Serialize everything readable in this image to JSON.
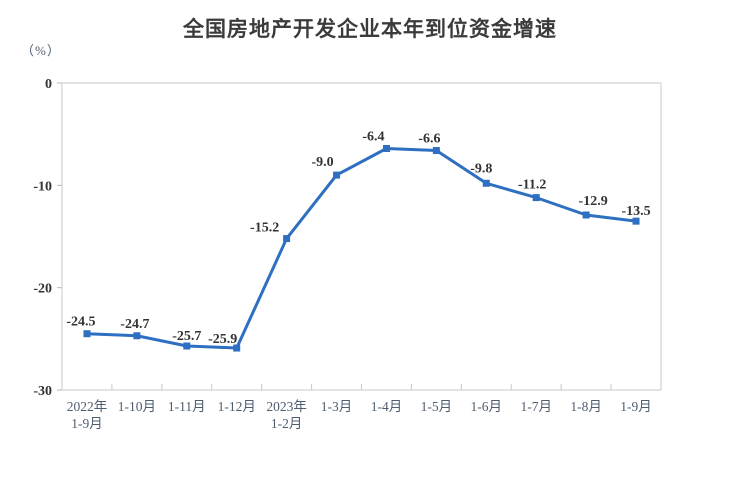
{
  "chart_data": {
    "type": "line",
    "title": "全国房地产开发企业本年到位资金增速",
    "unit": "（%）",
    "categories": [
      [
        "2022年",
        "1-9月"
      ],
      [
        "1-10月"
      ],
      [
        "1-11月"
      ],
      [
        "1-12月"
      ],
      [
        "2023年",
        "1-2月"
      ],
      [
        "1-3月"
      ],
      [
        "1-4月"
      ],
      [
        "1-5月"
      ],
      [
        "1-6月"
      ],
      [
        "1-7月"
      ],
      [
        "1-8月"
      ],
      [
        "1-9月"
      ]
    ],
    "values": [
      -24.5,
      -24.7,
      -25.7,
      -25.9,
      -15.2,
      -9.0,
      -6.4,
      -6.6,
      -9.8,
      -11.2,
      -12.9,
      -13.5
    ],
    "labels": [
      "-24.5",
      "-24.7",
      "-25.7",
      "-25.9",
      "-15.2",
      "-9.0",
      "-6.4",
      "-6.6",
      "-9.8",
      "-11.2",
      "-12.9",
      "-13.5"
    ],
    "y_ticks": [
      0,
      -10,
      -20,
      -30
    ],
    "y_tick_labels": [
      "0",
      "-10",
      "-20",
      "-30"
    ],
    "ylim": [
      -30,
      0
    ],
    "xlabel": "",
    "ylabel": "（%）",
    "grid": false,
    "legend": null,
    "marker": "square"
  },
  "colors": {
    "line": "#2e6fc1",
    "marker": "#2e6fc1",
    "plot_border": "#c8c8c8",
    "tick": "#b8b8b8",
    "title_text": "#3b3b3b",
    "value_label_text": "#333333",
    "y_axis_text": "#333333",
    "x_axis_text": "#4e5d6f"
  }
}
